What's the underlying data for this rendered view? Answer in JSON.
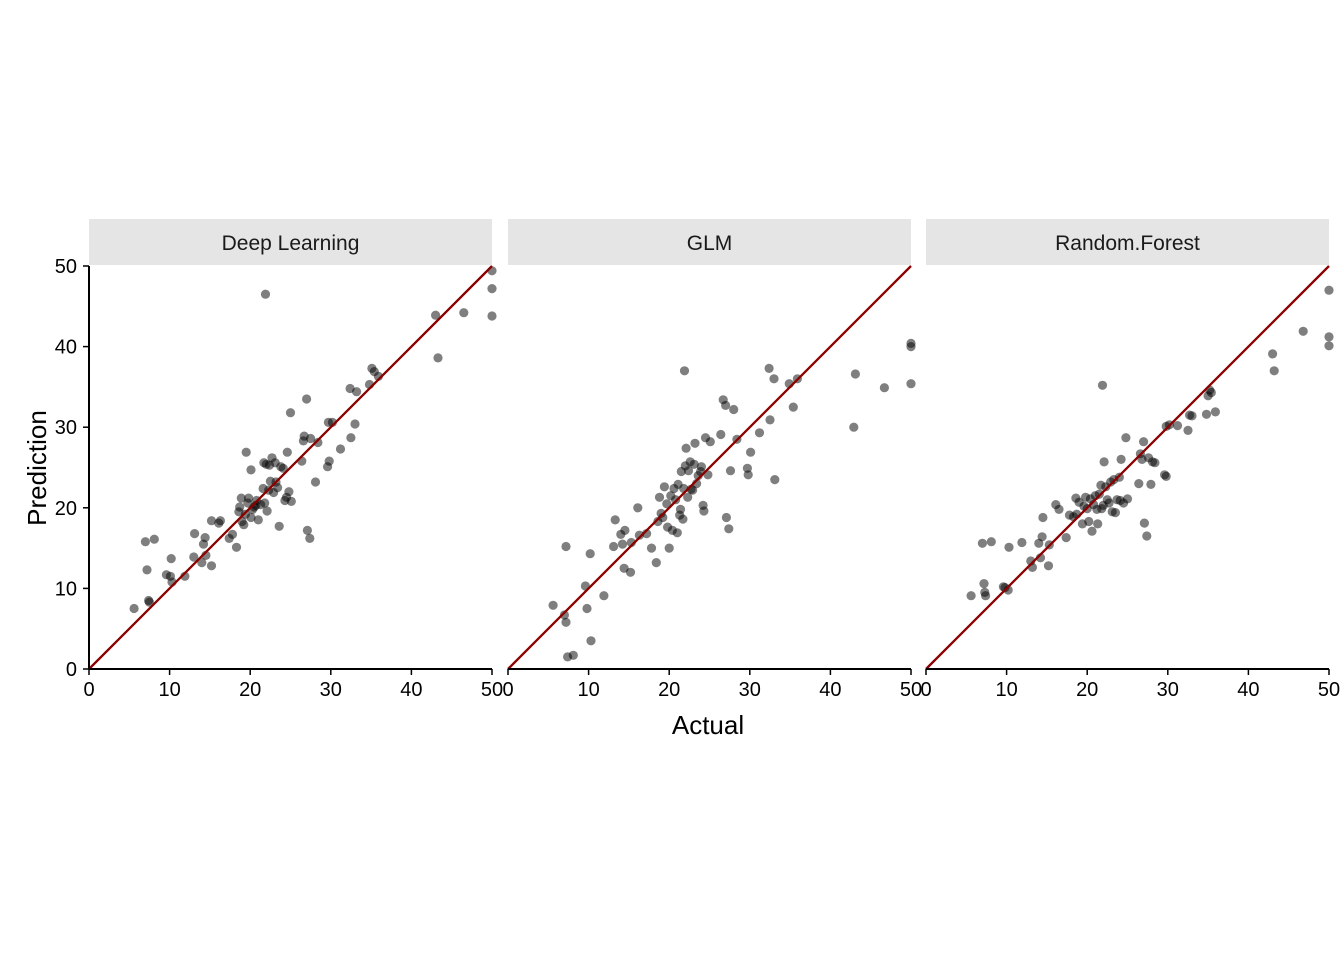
{
  "chart_data": {
    "type": "scatter",
    "xlabel": "Actual",
    "ylabel": "Prediction",
    "xlim": [
      0,
      50
    ],
    "ylim": [
      0,
      50
    ],
    "x_ticks": [
      0,
      10,
      20,
      30,
      40,
      50
    ],
    "y_ticks": [
      0,
      10,
      20,
      30,
      40,
      50
    ],
    "reference_line": {
      "slope": 1,
      "intercept": 0,
      "color": "#8b0000"
    },
    "point_color": "#000000",
    "point_opacity": 0.5,
    "grid": false,
    "legend": "none",
    "panels": [
      {
        "title": "Deep Learning",
        "points": [
          [
            5.6,
            7.5
          ],
          [
            7.0,
            15.8
          ],
          [
            7.2,
            12.3
          ],
          [
            7.4,
            8.5
          ],
          [
            7.5,
            8.3
          ],
          [
            8.1,
            16.1
          ],
          [
            9.6,
            11.7
          ],
          [
            10.1,
            11.5
          ],
          [
            10.2,
            13.7
          ],
          [
            10.3,
            10.8
          ],
          [
            11.9,
            11.5
          ],
          [
            13.0,
            13.9
          ],
          [
            13.1,
            16.8
          ],
          [
            14.0,
            13.2
          ],
          [
            14.2,
            15.5
          ],
          [
            14.4,
            16.3
          ],
          [
            14.5,
            14.1
          ],
          [
            15.2,
            12.8
          ],
          [
            15.2,
            18.4
          ],
          [
            16.1,
            18.1
          ],
          [
            16.3,
            18.4
          ],
          [
            17.4,
            16.2
          ],
          [
            17.8,
            16.7
          ],
          [
            18.3,
            15.1
          ],
          [
            18.6,
            19.5
          ],
          [
            18.7,
            20.1
          ],
          [
            18.9,
            21.2
          ],
          [
            19.0,
            18.3
          ],
          [
            19.2,
            17.9
          ],
          [
            19.4,
            19.2
          ],
          [
            19.5,
            26.9
          ],
          [
            19.7,
            20.6
          ],
          [
            19.8,
            21.2
          ],
          [
            20.1,
            18.8
          ],
          [
            20.1,
            24.7
          ],
          [
            20.3,
            19.8
          ],
          [
            20.5,
            20.1
          ],
          [
            20.7,
            20.3
          ],
          [
            20.8,
            20.9
          ],
          [
            21.0,
            18.5
          ],
          [
            21.3,
            20.4
          ],
          [
            21.6,
            22.4
          ],
          [
            21.7,
            25.6
          ],
          [
            21.8,
            20.6
          ],
          [
            21.9,
            46.5
          ],
          [
            22.0,
            25.4
          ],
          [
            22.1,
            19.6
          ],
          [
            22.3,
            22.2
          ],
          [
            22.4,
            25.3
          ],
          [
            22.5,
            23.3
          ],
          [
            22.7,
            26.2
          ],
          [
            22.9,
            21.9
          ],
          [
            23.1,
            25.6
          ],
          [
            23.2,
            23.2
          ],
          [
            23.4,
            22.5
          ],
          [
            23.6,
            17.7
          ],
          [
            23.8,
            25.1
          ],
          [
            24.1,
            24.9
          ],
          [
            24.3,
            20.9
          ],
          [
            24.5,
            21.3
          ],
          [
            24.6,
            26.9
          ],
          [
            24.8,
            22.0
          ],
          [
            25.0,
            31.8
          ],
          [
            25.1,
            20.8
          ],
          [
            26.4,
            25.8
          ],
          [
            26.6,
            28.3
          ],
          [
            26.7,
            28.9
          ],
          [
            27.0,
            33.5
          ],
          [
            27.1,
            17.2
          ],
          [
            27.4,
            16.2
          ],
          [
            27.5,
            28.6
          ],
          [
            28.1,
            23.2
          ],
          [
            28.4,
            28.1
          ],
          [
            29.6,
            25.1
          ],
          [
            29.7,
            30.6
          ],
          [
            29.8,
            25.8
          ],
          [
            30.2,
            30.6
          ],
          [
            31.2,
            27.3
          ],
          [
            32.4,
            34.8
          ],
          [
            32.5,
            28.7
          ],
          [
            33.0,
            30.4
          ],
          [
            33.2,
            34.4
          ],
          [
            34.8,
            35.3
          ],
          [
            35.1,
            37.3
          ],
          [
            35.4,
            36.9
          ],
          [
            35.9,
            36.3
          ],
          [
            43.0,
            43.9
          ],
          [
            43.3,
            38.6
          ],
          [
            46.5,
            44.2
          ],
          [
            50.0,
            49.4
          ],
          [
            50.0,
            47.2
          ],
          [
            50.0,
            43.8
          ]
        ]
      },
      {
        "title": "GLM",
        "points": [
          [
            5.6,
            7.9
          ],
          [
            7.0,
            6.7
          ],
          [
            7.2,
            5.8
          ],
          [
            7.2,
            15.2
          ],
          [
            7.4,
            1.5
          ],
          [
            8.1,
            1.7
          ],
          [
            9.6,
            10.3
          ],
          [
            9.8,
            7.5
          ],
          [
            10.2,
            14.3
          ],
          [
            10.3,
            3.5
          ],
          [
            11.9,
            9.1
          ],
          [
            13.1,
            15.2
          ],
          [
            13.3,
            18.5
          ],
          [
            14.0,
            16.7
          ],
          [
            14.2,
            15.5
          ],
          [
            14.4,
            12.5
          ],
          [
            14.5,
            17.2
          ],
          [
            15.2,
            12.0
          ],
          [
            15.3,
            15.7
          ],
          [
            16.1,
            20.0
          ],
          [
            16.3,
            16.6
          ],
          [
            17.2,
            16.8
          ],
          [
            17.8,
            15.0
          ],
          [
            18.4,
            13.2
          ],
          [
            18.6,
            18.3
          ],
          [
            18.8,
            21.3
          ],
          [
            19.0,
            19.3
          ],
          [
            19.2,
            18.8
          ],
          [
            19.4,
            22.6
          ],
          [
            19.7,
            20.5
          ],
          [
            19.8,
            17.6
          ],
          [
            20.0,
            15.0
          ],
          [
            20.2,
            21.5
          ],
          [
            20.4,
            17.2
          ],
          [
            20.6,
            22.4
          ],
          [
            20.8,
            21.0
          ],
          [
            21.0,
            16.9
          ],
          [
            21.1,
            22.9
          ],
          [
            21.3,
            19.1
          ],
          [
            21.4,
            19.8
          ],
          [
            21.5,
            24.5
          ],
          [
            21.7,
            18.6
          ],
          [
            21.8,
            22.4
          ],
          [
            21.9,
            37.0
          ],
          [
            22.0,
            25.2
          ],
          [
            22.1,
            27.4
          ],
          [
            22.3,
            21.3
          ],
          [
            22.4,
            24.6
          ],
          [
            22.6,
            25.7
          ],
          [
            22.7,
            22.3
          ],
          [
            22.9,
            22.2
          ],
          [
            23.1,
            25.4
          ],
          [
            23.2,
            28.0
          ],
          [
            23.4,
            23.0
          ],
          [
            23.6,
            24.0
          ],
          [
            23.9,
            24.5
          ],
          [
            24.0,
            25.1
          ],
          [
            24.2,
            20.3
          ],
          [
            24.3,
            19.6
          ],
          [
            24.5,
            28.7
          ],
          [
            24.8,
            24.1
          ],
          [
            25.1,
            28.2
          ],
          [
            26.4,
            29.1
          ],
          [
            26.7,
            33.4
          ],
          [
            27.0,
            32.7
          ],
          [
            27.1,
            18.8
          ],
          [
            27.4,
            17.4
          ],
          [
            27.6,
            24.6
          ],
          [
            28.0,
            32.2
          ],
          [
            28.4,
            28.5
          ],
          [
            29.7,
            24.9
          ],
          [
            29.8,
            24.1
          ],
          [
            30.1,
            26.9
          ],
          [
            31.2,
            29.3
          ],
          [
            32.4,
            37.3
          ],
          [
            32.5,
            30.9
          ],
          [
            33.0,
            36.0
          ],
          [
            33.1,
            23.5
          ],
          [
            34.9,
            35.4
          ],
          [
            35.4,
            32.5
          ],
          [
            35.9,
            36.0
          ],
          [
            42.9,
            30.0
          ],
          [
            43.1,
            36.6
          ],
          [
            46.7,
            34.9
          ],
          [
            50.0,
            40.4
          ],
          [
            50.0,
            40.0
          ],
          [
            50.0,
            35.4
          ]
        ]
      },
      {
        "title": "Random.Forest",
        "points": [
          [
            5.6,
            9.1
          ],
          [
            7.0,
            15.6
          ],
          [
            7.2,
            10.6
          ],
          [
            7.3,
            9.5
          ],
          [
            7.4,
            9.1
          ],
          [
            8.1,
            15.8
          ],
          [
            9.6,
            10.2
          ],
          [
            9.8,
            10.1
          ],
          [
            10.2,
            9.8
          ],
          [
            10.3,
            15.1
          ],
          [
            11.9,
            15.7
          ],
          [
            13.0,
            13.4
          ],
          [
            13.2,
            12.6
          ],
          [
            14.0,
            15.6
          ],
          [
            14.2,
            13.8
          ],
          [
            14.4,
            16.4
          ],
          [
            14.5,
            18.8
          ],
          [
            15.2,
            12.8
          ],
          [
            15.3,
            15.4
          ],
          [
            16.1,
            20.4
          ],
          [
            16.5,
            19.8
          ],
          [
            17.4,
            16.3
          ],
          [
            17.8,
            19.1
          ],
          [
            18.3,
            18.9
          ],
          [
            18.6,
            21.2
          ],
          [
            18.7,
            19.2
          ],
          [
            19.0,
            20.7
          ],
          [
            19.4,
            18.0
          ],
          [
            19.6,
            20.2
          ],
          [
            19.8,
            21.3
          ],
          [
            20.0,
            19.9
          ],
          [
            20.2,
            18.3
          ],
          [
            20.4,
            21.1
          ],
          [
            20.6,
            17.1
          ],
          [
            20.8,
            20.4
          ],
          [
            21.0,
            21.5
          ],
          [
            21.2,
            19.8
          ],
          [
            21.3,
            18.0
          ],
          [
            21.5,
            21.7
          ],
          [
            21.7,
            22.8
          ],
          [
            21.8,
            19.9
          ],
          [
            21.9,
            35.2
          ],
          [
            22.0,
            20.3
          ],
          [
            22.1,
            25.7
          ],
          [
            22.3,
            22.6
          ],
          [
            22.5,
            21.0
          ],
          [
            22.7,
            20.6
          ],
          [
            22.9,
            23.2
          ],
          [
            23.1,
            19.5
          ],
          [
            23.3,
            23.5
          ],
          [
            23.5,
            19.4
          ],
          [
            23.7,
            21.0
          ],
          [
            24.0,
            23.8
          ],
          [
            24.1,
            20.9
          ],
          [
            24.2,
            26.0
          ],
          [
            24.5,
            20.6
          ],
          [
            24.8,
            28.7
          ],
          [
            25.0,
            21.1
          ],
          [
            26.4,
            23.0
          ],
          [
            26.6,
            26.7
          ],
          [
            26.8,
            26.0
          ],
          [
            27.0,
            28.2
          ],
          [
            27.1,
            18.1
          ],
          [
            27.4,
            16.5
          ],
          [
            27.6,
            26.2
          ],
          [
            27.9,
            22.9
          ],
          [
            28.1,
            25.7
          ],
          [
            28.4,
            25.6
          ],
          [
            29.6,
            24.1
          ],
          [
            29.8,
            23.9
          ],
          [
            29.8,
            30.1
          ],
          [
            30.2,
            30.3
          ],
          [
            31.2,
            30.2
          ],
          [
            32.5,
            29.6
          ],
          [
            32.7,
            31.5
          ],
          [
            33.0,
            31.4
          ],
          [
            34.8,
            31.6
          ],
          [
            35.0,
            33.9
          ],
          [
            35.2,
            34.6
          ],
          [
            35.4,
            34.3
          ],
          [
            35.9,
            31.9
          ],
          [
            43.0,
            39.1
          ],
          [
            43.2,
            37.0
          ],
          [
            46.8,
            41.9
          ],
          [
            50.0,
            47.0
          ],
          [
            50.0,
            41.2
          ],
          [
            50.0,
            40.1
          ]
        ]
      }
    ]
  }
}
